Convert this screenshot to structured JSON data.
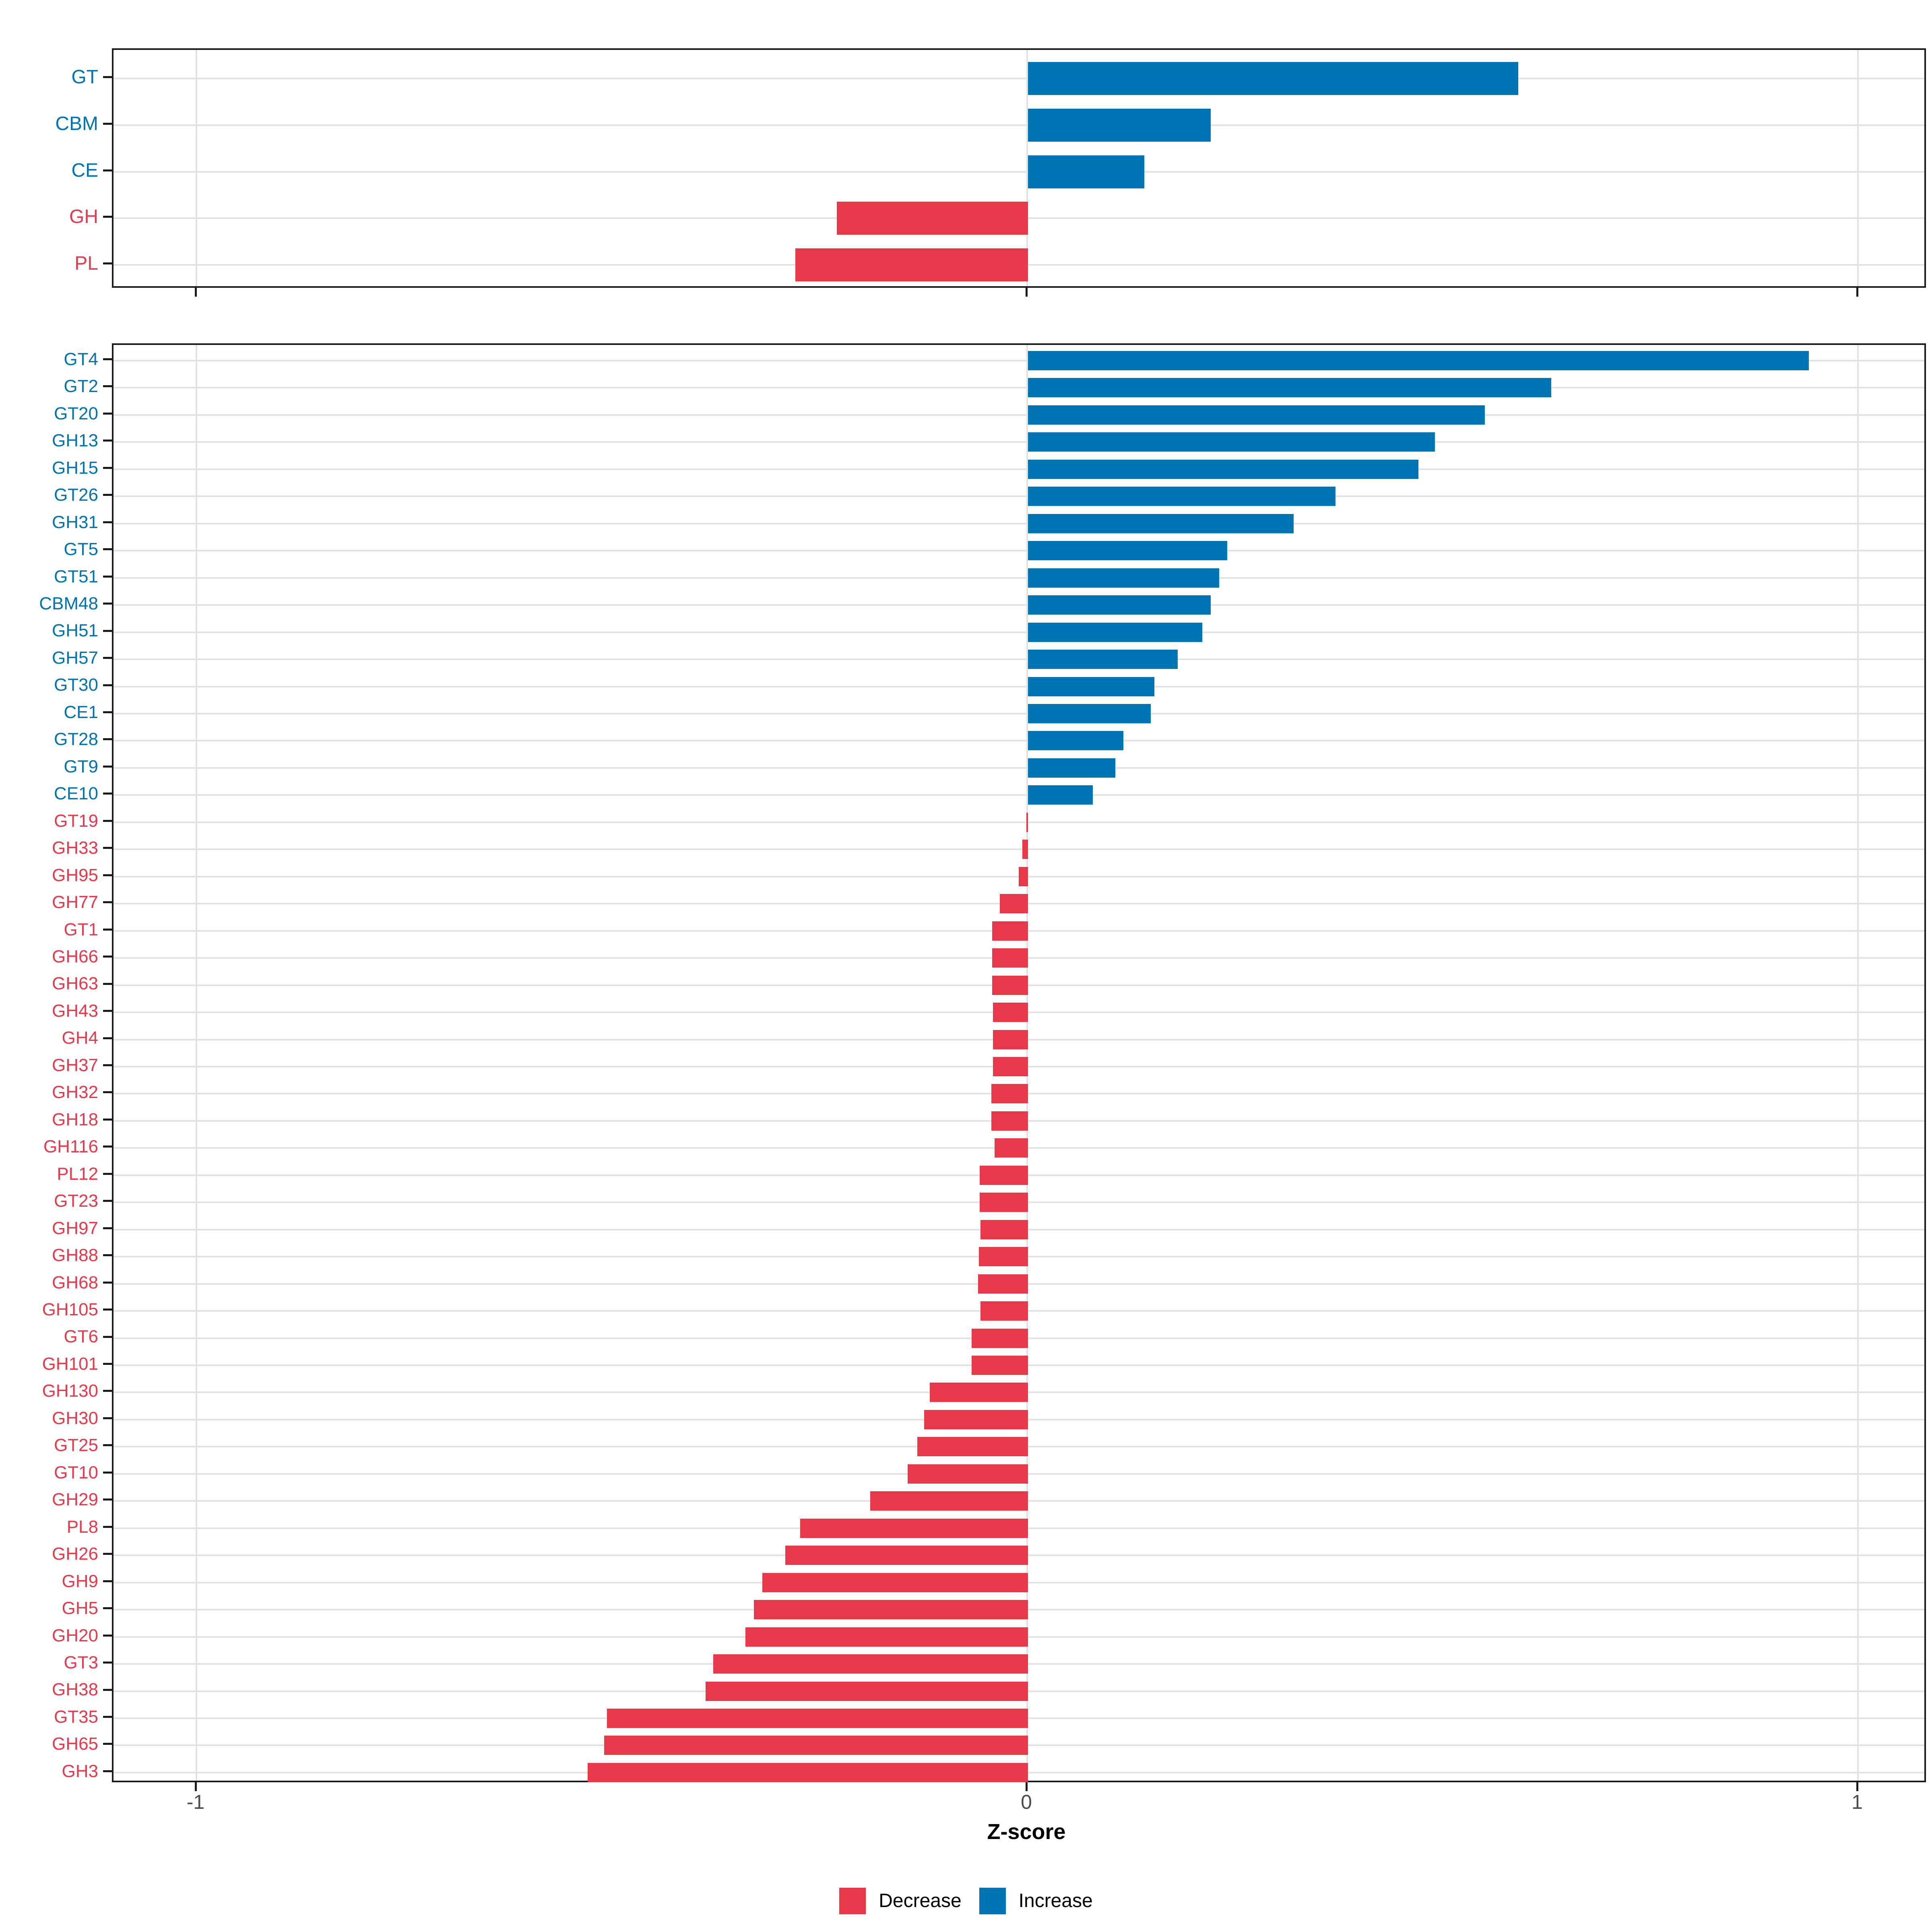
{
  "axis": {
    "label": "Z-score",
    "tick_labels": [
      "-1",
      "0",
      "1"
    ],
    "tick_values": [
      -1,
      0,
      1
    ]
  },
  "legend": {
    "items": [
      {
        "label": "Decrease",
        "color": "#e8394a"
      },
      {
        "label": "Increase",
        "color": "#0073b2"
      }
    ]
  },
  "colors": {
    "decrease": "#e8394a",
    "increase": "#0073b2",
    "grid": "#e2e2e2",
    "axis_text": "#4d4d4d",
    "panel_border": "#1a1a1a"
  },
  "chart_data": [
    {
      "type": "bar",
      "orientation": "horizontal",
      "panel": "cazyme-classes",
      "categories": [
        "GT",
        "CBM",
        "CE",
        "GH",
        "PL"
      ],
      "values": [
        0.59,
        0.22,
        0.14,
        -0.23,
        -0.28
      ],
      "groups": [
        "Increase",
        "Increase",
        "Increase",
        "Decrease",
        "Decrease"
      ],
      "xlabel": "Z-score",
      "xlim": [
        -1.1,
        1.08
      ],
      "grid": true,
      "legend_position": "bottom"
    },
    {
      "type": "bar",
      "orientation": "horizontal",
      "panel": "cazyme-families",
      "categories": [
        "GT4",
        "GT2",
        "GT20",
        "GH13",
        "GH15",
        "GT26",
        "GH31",
        "GT5",
        "GT51",
        "CBM48",
        "GH51",
        "GH57",
        "GT30",
        "CE1",
        "GT28",
        "GT9",
        "CE10",
        "GT19",
        "GH33",
        "GH95",
        "GH77",
        "GT1",
        "GH66",
        "GH63",
        "GH43",
        "GH4",
        "GH37",
        "GH32",
        "GH18",
        "GH116",
        "PL12",
        "GT23",
        "GH97",
        "GH88",
        "GH68",
        "GH105",
        "GT6",
        "GH101",
        "GH130",
        "GH30",
        "GT25",
        "GT10",
        "GH29",
        "PL8",
        "GH26",
        "GH9",
        "GH5",
        "GH20",
        "GT3",
        "GH38",
        "GT35",
        "GH65",
        "GH3"
      ],
      "values": [
        0.94,
        0.63,
        0.55,
        0.49,
        0.47,
        0.37,
        0.32,
        0.24,
        0.23,
        0.22,
        0.21,
        0.18,
        0.152,
        0.148,
        0.115,
        0.105,
        0.078,
        -0.002,
        -0.007,
        -0.011,
        -0.034,
        -0.043,
        -0.043,
        -0.043,
        -0.042,
        -0.042,
        -0.042,
        -0.044,
        -0.044,
        -0.04,
        -0.058,
        -0.058,
        -0.057,
        -0.059,
        -0.06,
        -0.057,
        -0.068,
        -0.068,
        -0.118,
        -0.125,
        -0.133,
        -0.145,
        -0.19,
        -0.274,
        -0.292,
        -0.32,
        -0.33,
        -0.34,
        -0.379,
        -0.388,
        -0.507,
        -0.51,
        -0.53
      ],
      "groups": [
        "Increase",
        "Increase",
        "Increase",
        "Increase",
        "Increase",
        "Increase",
        "Increase",
        "Increase",
        "Increase",
        "Increase",
        "Increase",
        "Increase",
        "Increase",
        "Increase",
        "Increase",
        "Increase",
        "Increase",
        "Decrease",
        "Decrease",
        "Decrease",
        "Decrease",
        "Decrease",
        "Decrease",
        "Decrease",
        "Decrease",
        "Decrease",
        "Decrease",
        "Decrease",
        "Decrease",
        "Decrease",
        "Decrease",
        "Decrease",
        "Decrease",
        "Decrease",
        "Decrease",
        "Decrease",
        "Decrease",
        "Decrease",
        "Decrease",
        "Decrease",
        "Decrease",
        "Decrease",
        "Decrease",
        "Decrease",
        "Decrease",
        "Decrease",
        "Decrease",
        "Decrease",
        "Decrease",
        "Decrease",
        "Decrease",
        "Decrease",
        "Decrease"
      ],
      "xlabel": "Z-score",
      "xlim": [
        -1.1,
        1.08
      ],
      "grid": true,
      "legend_position": "bottom"
    }
  ]
}
